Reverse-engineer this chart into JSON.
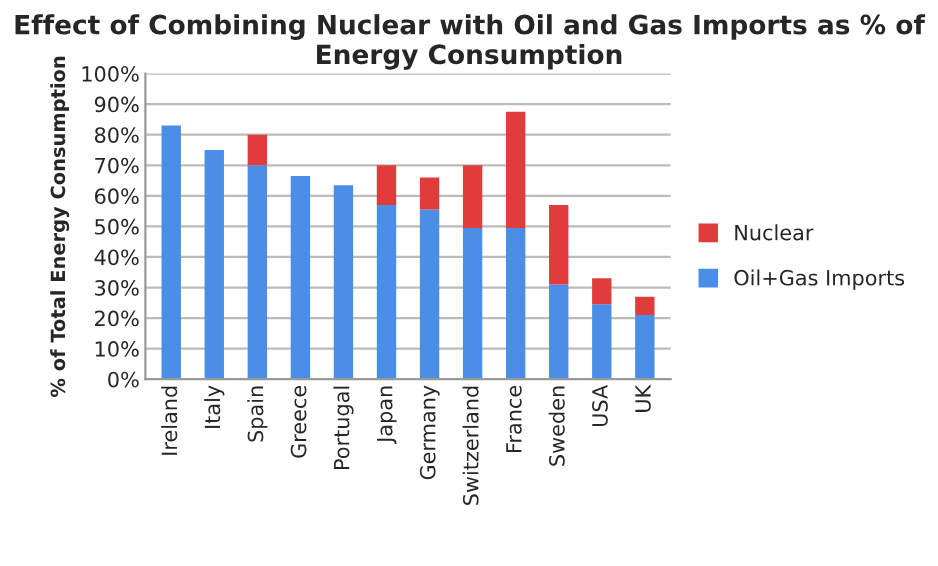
{
  "chart_data": {
    "type": "bar",
    "title": "Effect of Combining Nuclear with Oil and Gas Imports as % of Energy Consumption",
    "ylabel": "% of Total Energy Consumption",
    "categories": [
      "Ireland",
      "Italy",
      "Spain",
      "Greece",
      "Portugal",
      "Japan",
      "Germany",
      "Switzerland",
      "France",
      "Sweden",
      "USA",
      "UK"
    ],
    "stacked": true,
    "series": [
      {
        "name": "Oil+Gas Imports",
        "color": "#4a8ee8",
        "values": [
          83,
          75,
          70,
          66.5,
          63.5,
          57,
          55.5,
          49.5,
          49.5,
          31,
          24.5,
          21
        ]
      },
      {
        "name": "Nuclear",
        "color": "#e03c3c",
        "values": [
          null,
          null,
          10,
          null,
          null,
          13,
          10.5,
          20.5,
          38,
          26,
          8.5,
          6
        ]
      }
    ],
    "ylim": [
      0,
      100
    ],
    "yticks": [
      {
        "value": 0,
        "label": "0%"
      },
      {
        "value": 10,
        "label": "10%"
      },
      {
        "value": 20,
        "label": "20%"
      },
      {
        "value": 30,
        "label": "30%"
      },
      {
        "value": 40,
        "label": "40%"
      },
      {
        "value": 50,
        "label": "50%"
      },
      {
        "value": 60,
        "label": "60%"
      },
      {
        "value": 70,
        "label": "70%"
      },
      {
        "value": 80,
        "label": "80%"
      },
      {
        "value": 90,
        "label": "90%"
      },
      {
        "value": 100,
        "label": "100%"
      }
    ],
    "grid": "y",
    "legend": "right"
  }
}
